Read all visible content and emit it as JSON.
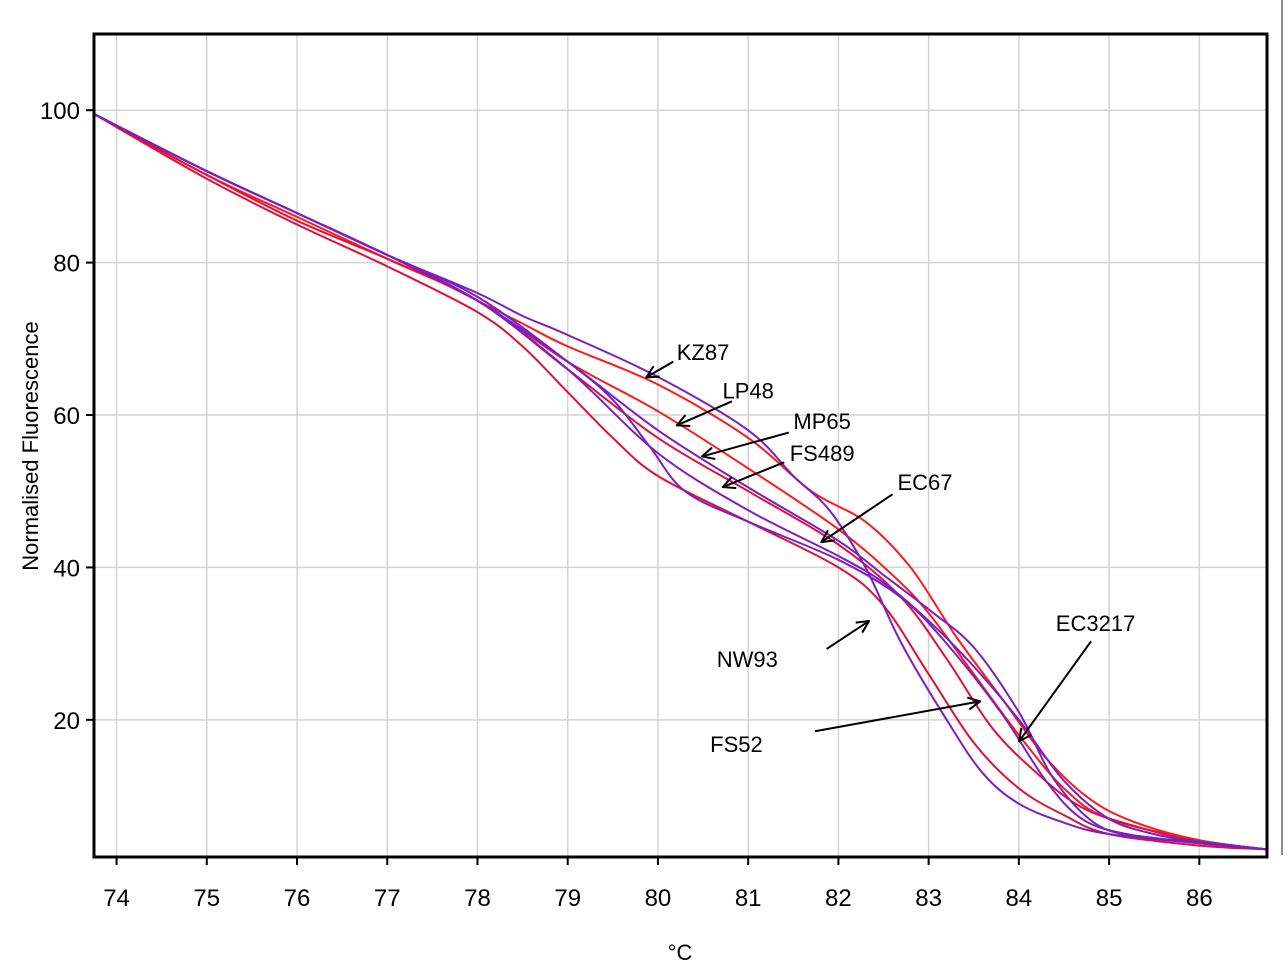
{
  "chart_data": {
    "type": "line",
    "title": "",
    "xlabel": "°C",
    "ylabel": "Normalised Fluorescence",
    "xlim": [
      73.75,
      86.75
    ],
    "ylim": [
      2,
      110
    ],
    "xticks": [
      74,
      75,
      76,
      77,
      78,
      79,
      80,
      81,
      82,
      83,
      84,
      85,
      86
    ],
    "yticks": [
      20,
      40,
      60,
      80,
      100
    ],
    "grid": true,
    "legend": "none",
    "colors": {
      "red": "#ff1a1a",
      "purple": "#7a1fc4",
      "darkred": "#e0103a"
    },
    "series": [
      {
        "color": "#ff1a1a",
        "points": [
          [
            73.75,
            99.5
          ],
          [
            75,
            92
          ],
          [
            76,
            86.5
          ],
          [
            77,
            81
          ],
          [
            78,
            75
          ],
          [
            78.5,
            72
          ],
          [
            79,
            69
          ],
          [
            80,
            64
          ],
          [
            81,
            57
          ],
          [
            81.7,
            50
          ],
          [
            82.3,
            46
          ],
          [
            82.8,
            40
          ],
          [
            83.3,
            31
          ],
          [
            83.8,
            23
          ],
          [
            84.3,
            15
          ],
          [
            84.8,
            9.5
          ],
          [
            85.3,
            6.5
          ],
          [
            86,
            4.2
          ],
          [
            86.75,
            3
          ]
        ]
      },
      {
        "color": "#ff1a1a",
        "points": [
          [
            73.75,
            99.5
          ],
          [
            75,
            91.5
          ],
          [
            76,
            86
          ],
          [
            77,
            80.5
          ],
          [
            78,
            75
          ],
          [
            79,
            67
          ],
          [
            80,
            60.5
          ],
          [
            81,
            53
          ],
          [
            82,
            45
          ],
          [
            82.6,
            39
          ],
          [
            83,
            34
          ],
          [
            83.5,
            26
          ],
          [
            84,
            18
          ],
          [
            84.5,
            11
          ],
          [
            85,
            7
          ],
          [
            86,
            4.2
          ],
          [
            86.75,
            3
          ]
        ]
      },
      {
        "color": "#e0103a",
        "points": [
          [
            73.75,
            99.5
          ],
          [
            75,
            91
          ],
          [
            76,
            85
          ],
          [
            77,
            79.5
          ],
          [
            78,
            73.5
          ],
          [
            78.5,
            69
          ],
          [
            79,
            63
          ],
          [
            79.5,
            57
          ],
          [
            80,
            52
          ],
          [
            81,
            46
          ],
          [
            82,
            40
          ],
          [
            82.5,
            35
          ],
          [
            83,
            26
          ],
          [
            83.5,
            17
          ],
          [
            84,
            11
          ],
          [
            84.5,
            7.5
          ],
          [
            85,
            5
          ],
          [
            86,
            3.5
          ],
          [
            86.75,
            3
          ]
        ]
      },
      {
        "color": "#e0103a",
        "points": [
          [
            73.75,
            99.5
          ],
          [
            75,
            91.5
          ],
          [
            76,
            85.5
          ],
          [
            77,
            80.5
          ],
          [
            78,
            75
          ],
          [
            79,
            66
          ],
          [
            80,
            57
          ],
          [
            81,
            50
          ],
          [
            82,
            43
          ],
          [
            82.7,
            36
          ],
          [
            83.2,
            28
          ],
          [
            83.7,
            19
          ],
          [
            84.2,
            13
          ],
          [
            84.7,
            8.5
          ],
          [
            85.3,
            6
          ],
          [
            86,
            4
          ],
          [
            86.75,
            3
          ]
        ]
      },
      {
        "color": "#7a1fc4",
        "points": [
          [
            73.75,
            99.5
          ],
          [
            75,
            92
          ],
          [
            76,
            86.5
          ],
          [
            77,
            81
          ],
          [
            78,
            76
          ],
          [
            78.5,
            73
          ],
          [
            79,
            70.5
          ],
          [
            80,
            65
          ],
          [
            81,
            58
          ],
          [
            81.5,
            52
          ],
          [
            81.9,
            47.5
          ],
          [
            82.3,
            40
          ],
          [
            82.7,
            30
          ],
          [
            83.2,
            20
          ],
          [
            83.6,
            13
          ],
          [
            84,
            9
          ],
          [
            84.5,
            6.5
          ],
          [
            85,
            5
          ],
          [
            86,
            3.8
          ],
          [
            86.75,
            3
          ]
        ]
      },
      {
        "color": "#7a1fc4",
        "points": [
          [
            73.75,
            99.5
          ],
          [
            75,
            92
          ],
          [
            76,
            86.5
          ],
          [
            77,
            81
          ],
          [
            78,
            75.5
          ],
          [
            79,
            67
          ],
          [
            79.5,
            62
          ],
          [
            79.9,
            56
          ],
          [
            80.3,
            50
          ],
          [
            81,
            46
          ],
          [
            82,
            41
          ],
          [
            82.7,
            36
          ],
          [
            83.2,
            30
          ],
          [
            83.8,
            21
          ],
          [
            84.3,
            12
          ],
          [
            84.7,
            7
          ],
          [
            85.2,
            5
          ],
          [
            86,
            3.8
          ],
          [
            86.75,
            3
          ]
        ]
      },
      {
        "color": "#7a1fc4",
        "points": [
          [
            73.75,
            99.5
          ],
          [
            75,
            92
          ],
          [
            76,
            86.5
          ],
          [
            77,
            81
          ],
          [
            78,
            75
          ],
          [
            79,
            67
          ],
          [
            80,
            58
          ],
          [
            81,
            50.5
          ],
          [
            82,
            43.5
          ],
          [
            82.5,
            39
          ],
          [
            83,
            34.5
          ],
          [
            83.5,
            29.5
          ],
          [
            84,
            21
          ],
          [
            84.4,
            12
          ],
          [
            84.9,
            6
          ],
          [
            85.5,
            4.5
          ],
          [
            86,
            4
          ],
          [
            86.75,
            3
          ]
        ]
      },
      {
        "color": "#7a1fc4",
        "points": [
          [
            73.75,
            99.5
          ],
          [
            75,
            92
          ],
          [
            76,
            86.5
          ],
          [
            77,
            81
          ],
          [
            78,
            75
          ],
          [
            79,
            66
          ],
          [
            80,
            55
          ],
          [
            81,
            47.5
          ],
          [
            82,
            41.5
          ],
          [
            82.5,
            38
          ],
          [
            83,
            33
          ],
          [
            83.5,
            27
          ],
          [
            84,
            20
          ],
          [
            84.5,
            12
          ],
          [
            85,
            7
          ],
          [
            85.5,
            5
          ],
          [
            86,
            4
          ],
          [
            86.75,
            3
          ]
        ]
      }
    ],
    "annotations": [
      {
        "label": "KZ87",
        "label_at": [
          80.5,
          68.3
        ],
        "arrow_from": [
          80.17,
          67.0
        ],
        "arrow_to": [
          79.88,
          65.0
        ]
      },
      {
        "label": "LP48",
        "label_at": [
          81.0,
          63.2
        ],
        "arrow_from": [
          80.82,
          61.8
        ],
        "arrow_to": [
          80.22,
          58.7
        ]
      },
      {
        "label": "MP65",
        "label_at": [
          81.82,
          59.2
        ],
        "arrow_from": [
          81.45,
          57.7
        ],
        "arrow_to": [
          80.5,
          54.6
        ]
      },
      {
        "label": "FS489",
        "label_at": [
          81.82,
          55.0
        ],
        "arrow_from": [
          81.4,
          53.8
        ],
        "arrow_to": [
          80.73,
          50.6
        ]
      },
      {
        "label": "EC67",
        "label_at": [
          82.96,
          51.2
        ],
        "arrow_from": [
          82.6,
          49.6
        ],
        "arrow_to": [
          81.82,
          43.4
        ]
      },
      {
        "label": "NW93",
        "label_at": [
          80.99,
          28.0
        ],
        "arrow_from": [
          81.87,
          29.3
        ],
        "arrow_to": [
          82.33,
          32.9
        ]
      },
      {
        "label": "FS52",
        "label_at": [
          80.87,
          16.8
        ],
        "arrow_from": [
          81.74,
          18.5
        ],
        "arrow_to": [
          83.56,
          22.4
        ]
      },
      {
        "label": "EC3217",
        "label_at": [
          84.85,
          32.7
        ],
        "arrow_from": [
          84.8,
          30.3
        ],
        "arrow_to": [
          84.01,
          17.3
        ]
      }
    ]
  }
}
